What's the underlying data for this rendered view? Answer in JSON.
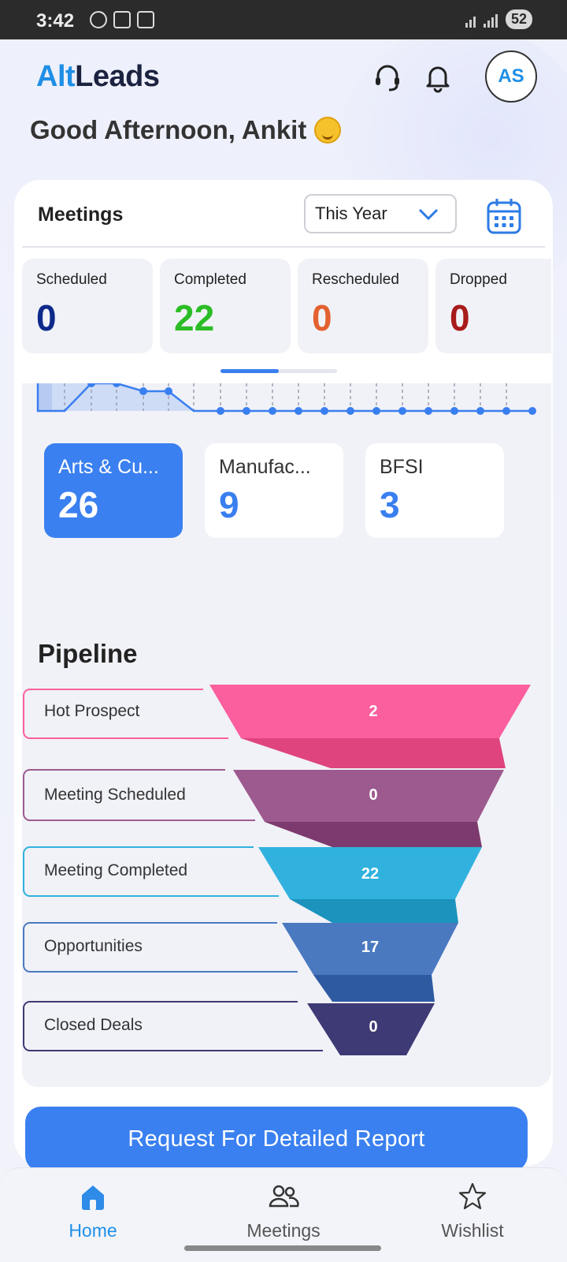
{
  "status_bar": {
    "time": "3:42",
    "battery": "52"
  },
  "header": {
    "logo_alt": "Alt",
    "logo_leads": "Leads",
    "avatar_initials": "AS"
  },
  "greeting": "Good Afternoon, Ankit",
  "meetings": {
    "title": "Meetings",
    "period": "This Year",
    "stats": [
      {
        "label": "Scheduled",
        "value": "0",
        "color": "#0d2a8a"
      },
      {
        "label": "Completed",
        "value": "22",
        "color": "#2bbd25"
      },
      {
        "label": "Rescheduled",
        "value": "0",
        "color": "#e3612f"
      },
      {
        "label": "Dropped",
        "value": "0",
        "color": "#a81b1b"
      }
    ]
  },
  "industries": [
    {
      "label": "Arts & Cu...",
      "value": "26"
    },
    {
      "label": "Manufac...",
      "value": "9"
    },
    {
      "label": "BFSI",
      "value": "3"
    }
  ],
  "pipeline": {
    "title": "Pipeline",
    "stages": [
      {
        "label": "Hot Prospect",
        "value": "2",
        "color": "#fb5f9e",
        "shade": "#e0447f"
      },
      {
        "label": "Meeting Scheduled",
        "value": "0",
        "color": "#9d5a8f",
        "shade": "#7d3a6e"
      },
      {
        "label": "Meeting Completed",
        "value": "22",
        "color": "#31b2de",
        "shade": "#1b93bd"
      },
      {
        "label": "Opportunities",
        "value": "17",
        "color": "#4a79c0",
        "shade": "#2e5aa1"
      },
      {
        "label": "Closed Deals",
        "value": "0",
        "color": "#3e3a75",
        "shade": "#3e3a75"
      }
    ]
  },
  "report_button": "Request For Detailed Report",
  "nav": {
    "home": "Home",
    "meetings": "Meetings",
    "wishlist": "Wishlist"
  }
}
